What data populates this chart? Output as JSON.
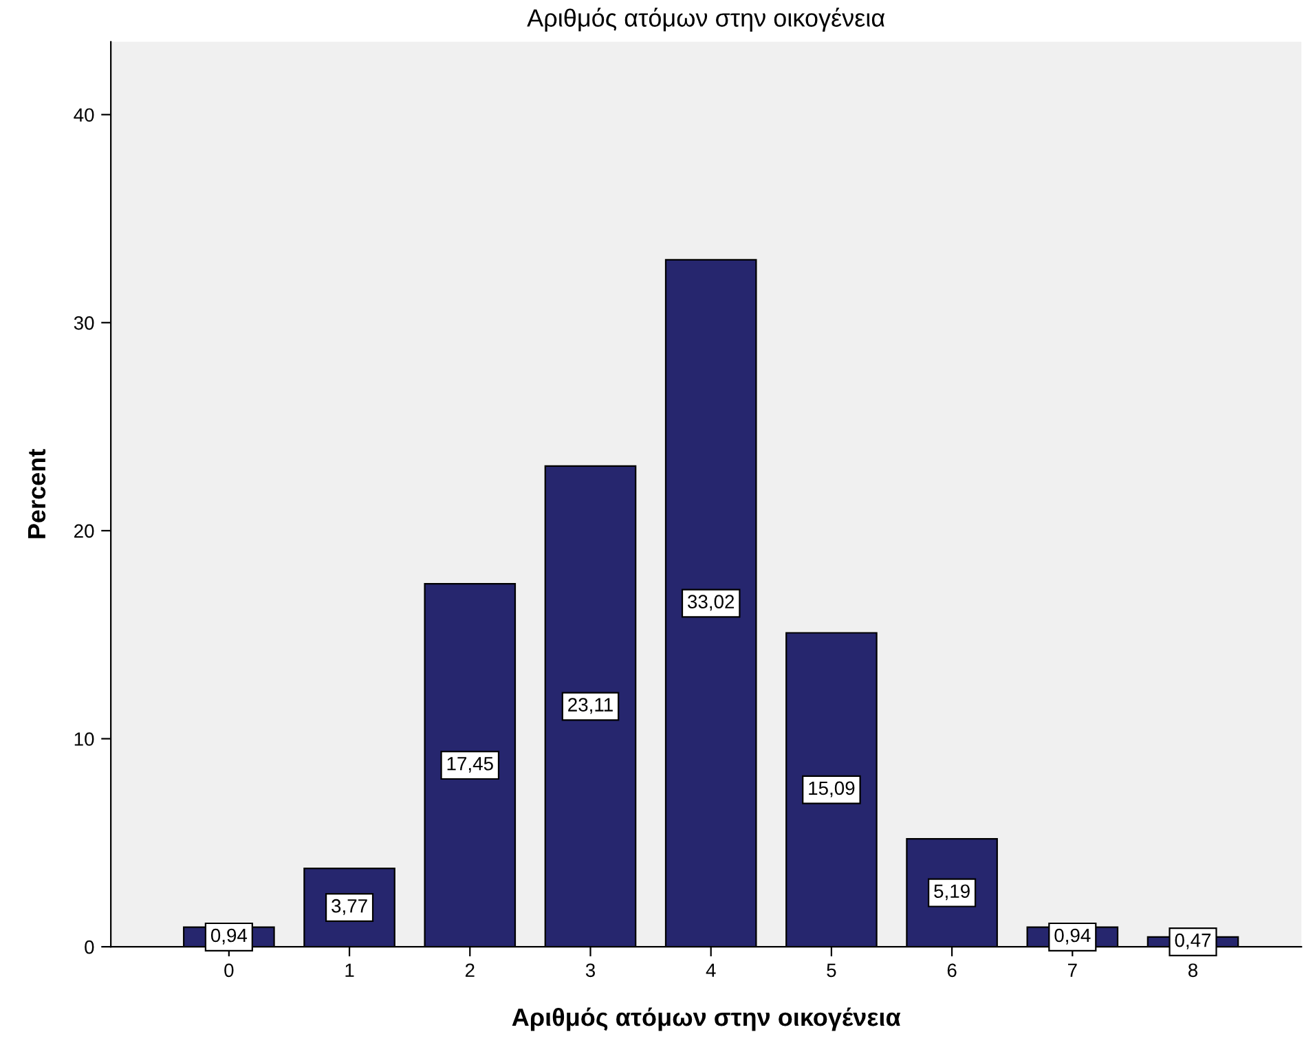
{
  "chart_data": {
    "type": "bar",
    "title": "Αριθμός ατόμων στην οικογένεια",
    "xlabel": "Αριθμός ατόμων στην οικογένεια",
    "ylabel": "Percent",
    "categories": [
      "0",
      "1",
      "2",
      "3",
      "4",
      "5",
      "6",
      "7",
      "8"
    ],
    "values": [
      0.94,
      3.77,
      17.45,
      23.11,
      33.02,
      15.09,
      5.19,
      0.94,
      0.47
    ],
    "value_labels": [
      "0,94",
      "3,77",
      "17,45",
      "23,11",
      "33,02",
      "15,09",
      "5,19",
      "0,94",
      "0,47"
    ],
    "color": "#26266e",
    "ylim": [
      0,
      43.5
    ],
    "yticks": [
      0,
      10,
      20,
      30,
      40
    ],
    "grid": false
  }
}
